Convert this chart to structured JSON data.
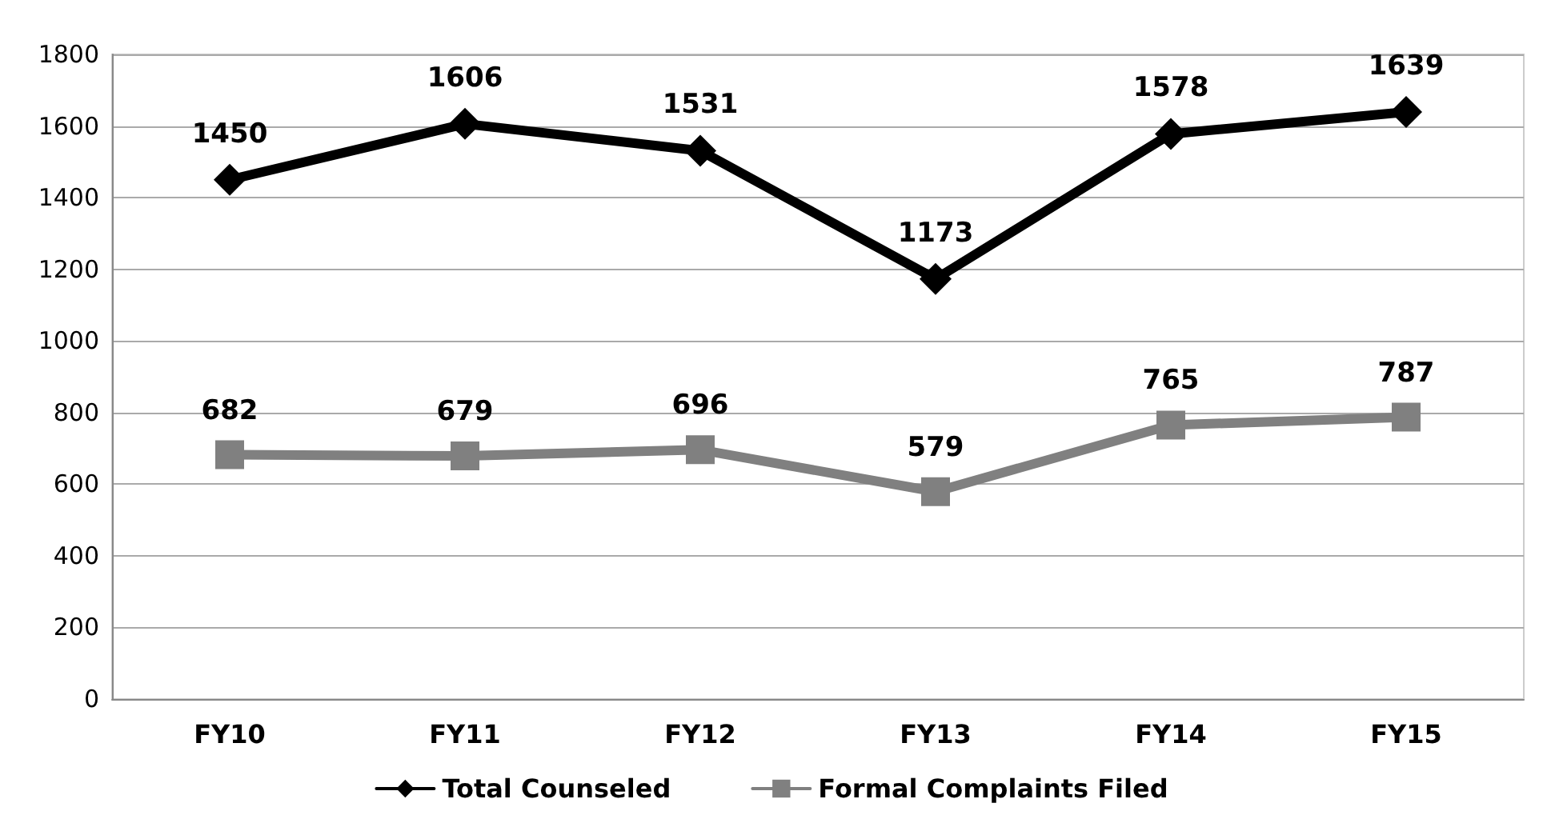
{
  "chart_data": {
    "type": "line",
    "categories": [
      "FY10",
      "FY11",
      "FY12",
      "FY13",
      "FY14",
      "FY15"
    ],
    "series": [
      {
        "name": "Total Counseled",
        "color": "#000000",
        "marker": "diamond",
        "values": [
          1450,
          1606,
          1531,
          1173,
          1578,
          1639
        ]
      },
      {
        "name": "Formal Complaints Filed",
        "color": "#808080",
        "marker": "square",
        "values": [
          682,
          679,
          696,
          579,
          765,
          787
        ]
      }
    ],
    "ylim": [
      0,
      1800
    ],
    "yticks": [
      0,
      200,
      400,
      600,
      800,
      1000,
      1200,
      1400,
      1600,
      1800
    ],
    "grid": "y",
    "legend": "bottom",
    "data_labels": true,
    "line_style": "solid"
  }
}
